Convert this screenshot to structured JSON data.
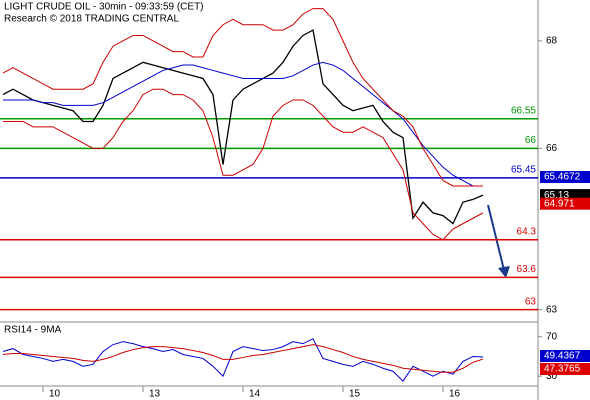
{
  "chart_data": {
    "type": "line",
    "title": "LIGHT CRUDE OIL - 30min - 09:33:59 (CET)",
    "subtitle": "Research © 2018 TRADING CENTRAL",
    "categories": [
      null,
      null,
      null,
      null,
      "10",
      null,
      null,
      null,
      null,
      null,
      null,
      null,
      null,
      null,
      "13",
      null,
      null,
      null,
      null,
      null,
      null,
      null,
      null,
      null,
      "14",
      null,
      null,
      null,
      null,
      null,
      null,
      null,
      null,
      null,
      "15",
      null,
      null,
      null,
      null,
      null,
      null,
      null,
      null,
      null,
      "16",
      null,
      null,
      null,
      null
    ],
    "ylim": [
      62.77,
      68.76
    ],
    "yticks": [
      68,
      66,
      63
    ],
    "series": [
      {
        "color": "#000000",
        "values": [
          67.0,
          67.1,
          67.0,
          66.9,
          66.85,
          66.8,
          66.75,
          66.7,
          66.5,
          66.5,
          66.8,
          67.3,
          67.4,
          67.5,
          67.6,
          67.55,
          67.5,
          67.45,
          67.4,
          67.35,
          67.3,
          67.0,
          65.7,
          66.9,
          67.1,
          67.2,
          67.3,
          67.4,
          67.6,
          67.9,
          68.1,
          68.2,
          67.2,
          67.0,
          66.8,
          66.7,
          66.75,
          66.8,
          66.5,
          66.3,
          66.2,
          64.7,
          65.0,
          64.8,
          64.75,
          64.6,
          65.0,
          65.05,
          65.13
        ]
      },
      {
        "color": "#0000cc",
        "values": [
          66.9,
          66.9,
          66.9,
          66.9,
          66.85,
          66.85,
          66.8,
          66.8,
          66.8,
          66.8,
          66.85,
          66.95,
          67.05,
          67.15,
          67.25,
          67.35,
          67.45,
          67.5,
          67.55,
          67.55,
          67.5,
          67.45,
          67.4,
          67.35,
          67.3,
          67.3,
          67.3,
          67.3,
          67.3,
          67.35,
          67.45,
          67.55,
          67.6,
          67.55,
          67.45,
          67.3,
          67.15,
          67.0,
          66.85,
          66.7,
          66.55,
          66.3,
          66.05,
          65.85,
          65.65,
          65.5,
          65.4,
          65.3,
          65.3
        ]
      },
      {
        "color": "#cc0000",
        "values": [
          67.4,
          67.5,
          67.4,
          67.3,
          67.2,
          67.1,
          67.1,
          67.1,
          67.1,
          67.2,
          67.6,
          67.9,
          68.0,
          68.1,
          68.1,
          68.0,
          67.9,
          67.8,
          67.8,
          67.7,
          67.7,
          68.1,
          68.3,
          68.4,
          68.3,
          68.3,
          68.3,
          68.2,
          68.2,
          68.3,
          68.5,
          68.6,
          68.6,
          68.4,
          68.0,
          67.6,
          67.3,
          67.1,
          66.9,
          66.7,
          66.6,
          66.4,
          66.0,
          65.7,
          65.4,
          65.3,
          65.3,
          65.3,
          65.3
        ]
      },
      {
        "color": "#cc0000",
        "values": [
          66.5,
          66.5,
          66.5,
          66.4,
          66.4,
          66.4,
          66.3,
          66.2,
          66.1,
          66.0,
          66.0,
          66.2,
          66.5,
          66.7,
          67.0,
          67.1,
          67.1,
          67.0,
          67.0,
          66.9,
          66.7,
          66.2,
          65.5,
          65.5,
          65.6,
          65.7,
          66.0,
          66.6,
          66.8,
          66.9,
          66.9,
          66.8,
          66.6,
          66.4,
          66.3,
          66.3,
          66.4,
          66.3,
          66.2,
          65.9,
          65.6,
          64.8,
          64.6,
          64.4,
          64.3,
          64.5,
          64.6,
          64.7,
          64.8
        ]
      }
    ],
    "levels": [
      {
        "value": 66.55,
        "color": "#009900"
      },
      {
        "value": 66,
        "color": "#009900"
      },
      {
        "value": 65.45,
        "color": "#0000cc"
      },
      {
        "value": 64.3,
        "color": "#dd0000"
      },
      {
        "value": 63.6,
        "color": "#dd0000"
      },
      {
        "value": 63,
        "color": "#dd0000"
      }
    ],
    "tags": [
      {
        "value": 65.4672,
        "color": "#0000cc"
      },
      {
        "value": 65.13,
        "color": "#000000"
      },
      {
        "value": 64.971,
        "color": "#dd0000"
      }
    ],
    "rsi": {
      "title": "RSI14 - 9MA",
      "ylim": [
        20,
        85
      ],
      "yticks": [
        70,
        30
      ],
      "series": [
        {
          "color": "#0000cc",
          "values": [
            55,
            58,
            52,
            50,
            48,
            45,
            47,
            45,
            40,
            42,
            55,
            62,
            65,
            63,
            60,
            58,
            55,
            57,
            52,
            50,
            48,
            40,
            30,
            55,
            60,
            58,
            56,
            57,
            60,
            65,
            63,
            68,
            48,
            45,
            42,
            40,
            45,
            42,
            38,
            35,
            25,
            40,
            35,
            30,
            35,
            32,
            45,
            50,
            49.4367
          ]
        },
        {
          "color": "#cc0000",
          "values": [
            52,
            53,
            53,
            52,
            51,
            50,
            49,
            48,
            46,
            45,
            47,
            50,
            54,
            57,
            59,
            60,
            60,
            59,
            58,
            56,
            54,
            51,
            47,
            47,
            49,
            51,
            52,
            54,
            56,
            58,
            60,
            62,
            60,
            57,
            54,
            50,
            47,
            45,
            43,
            41,
            38,
            37,
            36,
            35,
            34,
            34,
            38,
            44,
            47.3765
          ]
        }
      ],
      "tags": [
        {
          "value": 49.4367,
          "color": "#0000cc"
        },
        {
          "value": 47.3765,
          "color": "#dd0000"
        }
      ]
    }
  }
}
